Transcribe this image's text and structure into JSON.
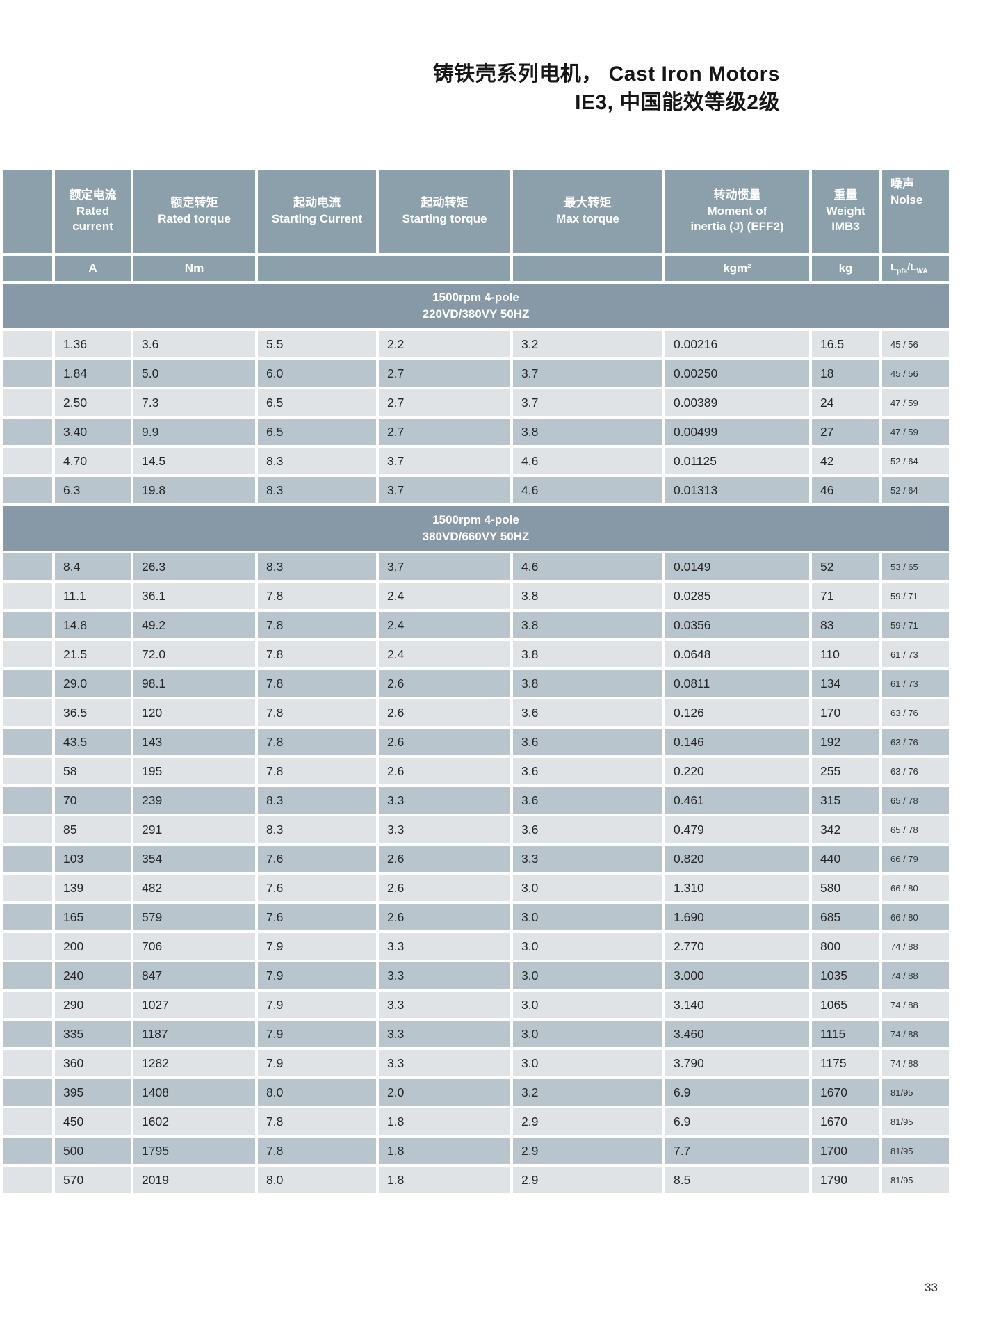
{
  "title": {
    "line1": "铸铁壳系列电机， Cast Iron Motors",
    "line2": "IE3, 中国能效等级2级"
  },
  "page_number": "33",
  "colors": {
    "header_bg": "#8ca0ac",
    "band_bg": "#8799a6",
    "row_light": "#dfe3e5",
    "row_dark": "#b9c5cc"
  },
  "table": {
    "columns": [
      {
        "zh": "",
        "en": "",
        "unit": ""
      },
      {
        "zh": "额定电流",
        "en": "Rated\ncurrent",
        "unit": "A"
      },
      {
        "zh": "额定转矩",
        "en": "Rated torque",
        "unit": "Nm"
      },
      {
        "zh": "起动电流",
        "en": "Starting Current",
        "unit": ""
      },
      {
        "zh": "起动转矩",
        "en": "Starting torque",
        "unit": ""
      },
      {
        "zh": "最大转矩",
        "en": "Max torque",
        "unit": ""
      },
      {
        "zh": "转动惯量",
        "en": "Moment of\ninertia (J) (EFF2)",
        "unit": "kgm²"
      },
      {
        "zh": "重量",
        "en": "Weight\nIMB3",
        "unit": "kg"
      },
      {
        "zh": "噪声",
        "en": "Noise",
        "unit_b1": "L",
        "unit_s1": "pfa",
        "unit_b2": "/L",
        "unit_s2": "WA"
      }
    ],
    "sections": [
      {
        "band_line1": "1500rpm  4-pole",
        "band_line2": "220VD/380VY  50HZ",
        "first_shade": "light",
        "rows": [
          [
            "1.36",
            "3.6",
            "5.5",
            "2.2",
            "3.2",
            "0.00216",
            "16.5",
            "45 / 56"
          ],
          [
            "1.84",
            "5.0",
            "6.0",
            "2.7",
            "3.7",
            "0.00250",
            "18",
            "45 / 56"
          ],
          [
            "2.50",
            "7.3",
            "6.5",
            "2.7",
            "3.7",
            "0.00389",
            "24",
            "47 / 59"
          ],
          [
            "3.40",
            "9.9",
            "6.5",
            "2.7",
            "3.8",
            "0.00499",
            "27",
            "47 / 59"
          ],
          [
            "4.70",
            "14.5",
            "8.3",
            "3.7",
            "4.6",
            "0.01125",
            "42",
            "52 / 64"
          ],
          [
            "6.3",
            "19.8",
            "8.3",
            "3.7",
            "4.6",
            "0.01313",
            "46",
            "52 / 64"
          ]
        ]
      },
      {
        "band_line1": "1500rpm  4-pole",
        "band_line2": "380VD/660VY  50HZ",
        "first_shade": "dark",
        "rows": [
          [
            "8.4",
            "26.3",
            "8.3",
            "3.7",
            "4.6",
            "0.0149",
            "52",
            "53 / 65"
          ],
          [
            "11.1",
            "36.1",
            "7.8",
            "2.4",
            "3.8",
            "0.0285",
            "71",
            "59 / 71"
          ],
          [
            "14.8",
            "49.2",
            "7.8",
            "2.4",
            "3.8",
            "0.0356",
            "83",
            "59 / 71"
          ],
          [
            "21.5",
            "72.0",
            "7.8",
            "2.4",
            "3.8",
            "0.0648",
            "110",
            "61 / 73"
          ],
          [
            "29.0",
            "98.1",
            "7.8",
            "2.6",
            "3.8",
            "0.0811",
            "134",
            "61 / 73"
          ],
          [
            "36.5",
            "120",
            "7.8",
            "2.6",
            "3.6",
            "0.126",
            "170",
            "63 / 76"
          ],
          [
            "43.5",
            "143",
            "7.8",
            "2.6",
            "3.6",
            "0.146",
            "192",
            "63 / 76"
          ],
          [
            "58",
            "195",
            "7.8",
            "2.6",
            "3.6",
            "0.220",
            "255",
            "63 / 76"
          ],
          [
            "70",
            "239",
            "8.3",
            "3.3",
            "3.6",
            "0.461",
            "315",
            "65 / 78"
          ],
          [
            "85",
            "291",
            "8.3",
            "3.3",
            "3.6",
            "0.479",
            "342",
            "65 / 78"
          ],
          [
            "103",
            "354",
            "7.6",
            "2.6",
            "3.3",
            "0.820",
            "440",
            "66 / 79"
          ],
          [
            "139",
            "482",
            "7.6",
            "2.6",
            "3.0",
            "1.310",
            "580",
            "66 / 80"
          ],
          [
            "165",
            "579",
            "7.6",
            "2.6",
            "3.0",
            "1.690",
            "685",
            "66 / 80"
          ],
          [
            "200",
            "706",
            "7.9",
            "3.3",
            "3.0",
            "2.770",
            "800",
            "74 / 88"
          ],
          [
            "240",
            "847",
            "7.9",
            "3.3",
            "3.0",
            "3.000",
            "1035",
            "74 / 88"
          ],
          [
            "290",
            "1027",
            "7.9",
            "3.3",
            "3.0",
            "3.140",
            "1065",
            "74 / 88"
          ],
          [
            "335",
            "1187",
            "7.9",
            "3.3",
            "3.0",
            "3.460",
            "1115",
            "74 / 88"
          ],
          [
            "360",
            "1282",
            "7.9",
            "3.3",
            "3.0",
            "3.790",
            "1175",
            "74 / 88"
          ],
          [
            "395",
            "1408",
            "8.0",
            "2.0",
            "3.2",
            "6.9",
            "1670",
            "81/95"
          ],
          [
            "450",
            "1602",
            "7.8",
            "1.8",
            "2.9",
            "6.9",
            "1670",
            "81/95"
          ],
          [
            "500",
            "1795",
            "7.8",
            "1.8",
            "2.9",
            "7.7",
            "1700",
            "81/95"
          ],
          [
            "570",
            "2019",
            "8.0",
            "1.8",
            "2.9",
            "8.5",
            "1790",
            "81/95"
          ]
        ]
      }
    ]
  }
}
